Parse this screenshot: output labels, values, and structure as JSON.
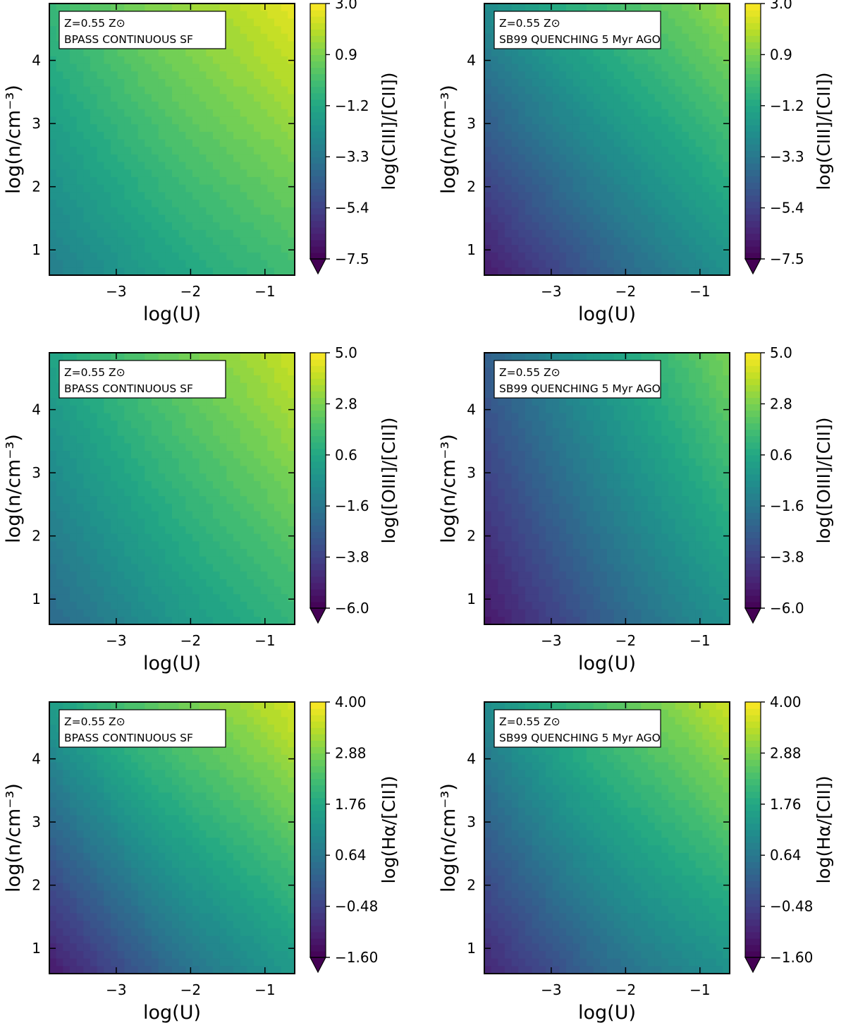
{
  "chart_data": [
    {
      "type": "heatmap",
      "annotation": [
        "Z=0.55 Z⊙",
        "BPASS CONTINUOUS SF"
      ],
      "xlabel": "log(U)",
      "ylabel": "log(n/cm⁻³)",
      "xlim": [
        -3.9,
        -0.6
      ],
      "ylim": [
        0.6,
        4.9
      ],
      "x_ticks": [
        -3,
        -2,
        -1
      ],
      "x_tick_labels": [
        "−3",
        "−2",
        "−1"
      ],
      "y_ticks": [
        1,
        2,
        3,
        4
      ],
      "y_tick_labels": [
        "1",
        "2",
        "3",
        "4"
      ],
      "colorbar": {
        "label": "log(CIII]/[CII])",
        "min": -7.5,
        "max": 3.0,
        "ticks": [
          3.0,
          0.9,
          -1.2,
          -3.3,
          -5.4,
          -7.5
        ],
        "tick_labels": [
          "3.0",
          "0.9",
          "−1.2",
          "−3.3",
          "−5.4",
          "−7.5"
        ]
      },
      "field": {
        "corners": {
          "bottom_left": -3.0,
          "bottom_right": -0.3,
          "top_left": -0.5,
          "top_right": 2.7
        }
      }
    },
    {
      "type": "heatmap",
      "annotation": [
        "Z=0.55 Z⊙",
        "SB99 QUENCHING 5 Myr AGO"
      ],
      "xlabel": "log(U)",
      "ylabel": "log(n/cm⁻³)",
      "xlim": [
        -3.9,
        -0.6
      ],
      "ylim": [
        0.6,
        4.9
      ],
      "x_ticks": [
        -3,
        -2,
        -1
      ],
      "x_tick_labels": [
        "−3",
        "−2",
        "−1"
      ],
      "y_ticks": [
        1,
        2,
        3,
        4
      ],
      "y_tick_labels": [
        "1",
        "2",
        "3",
        "4"
      ],
      "colorbar": {
        "label": "log(CIII]/[CII])",
        "min": -7.5,
        "max": 3.0,
        "ticks": [
          3.0,
          0.9,
          -1.2,
          -3.3,
          -5.4,
          -7.5
        ],
        "tick_labels": [
          "3.0",
          "0.9",
          "−1.2",
          "−3.3",
          "−5.4",
          "−7.5"
        ]
      },
      "field": {
        "corners": {
          "bottom_left": -6.8,
          "bottom_right": -2.2,
          "top_left": -2.4,
          "top_right": 1.5
        }
      }
    },
    {
      "type": "heatmap",
      "annotation": [
        "Z=0.55 Z⊙",
        "BPASS CONTINUOUS SF"
      ],
      "xlabel": "log(U)",
      "ylabel": "log(n/cm⁻³)",
      "xlim": [
        -3.9,
        -0.6
      ],
      "ylim": [
        0.6,
        4.9
      ],
      "x_ticks": [
        -3,
        -2,
        -1
      ],
      "x_tick_labels": [
        "−3",
        "−2",
        "−1"
      ],
      "y_ticks": [
        1,
        2,
        3,
        4
      ],
      "y_tick_labels": [
        "1",
        "2",
        "3",
        "4"
      ],
      "colorbar": {
        "label": "log([OIII]/[CII])",
        "min": -6.0,
        "max": 5.0,
        "ticks": [
          5.0,
          2.8,
          0.6,
          -1.6,
          -3.8,
          -6.0
        ],
        "tick_labels": [
          "5.0",
          "2.8",
          "0.6",
          "−1.6",
          "−3.8",
          "−6.0"
        ]
      },
      "field": {
        "corners": {
          "bottom_left": -2.2,
          "bottom_right": 1.2,
          "top_left": 0.4,
          "top_right": 4.2
        }
      }
    },
    {
      "type": "heatmap",
      "annotation": [
        "Z=0.55 Z⊙",
        "SB99 QUENCHING 5 Myr AGO"
      ],
      "xlabel": "log(U)",
      "ylabel": "log(n/cm⁻³)",
      "xlim": [
        -3.9,
        -0.6
      ],
      "ylim": [
        0.6,
        4.9
      ],
      "x_ticks": [
        -3,
        -2,
        -1
      ],
      "x_tick_labels": [
        "−3",
        "−2",
        "−1"
      ],
      "y_ticks": [
        1,
        2,
        3,
        4
      ],
      "y_tick_labels": [
        "1",
        "2",
        "3",
        "4"
      ],
      "colorbar": {
        "label": "log([OIII]/[CII])",
        "min": -6.0,
        "max": 5.0,
        "ticks": [
          5.0,
          2.8,
          0.6,
          -1.6,
          -3.8,
          -6.0
        ],
        "tick_labels": [
          "5.0",
          "2.8",
          "0.6",
          "−1.6",
          "−3.8",
          "−6.0"
        ]
      },
      "field": {
        "corners": {
          "bottom_left": -5.3,
          "bottom_right": -0.4,
          "top_left": -2.6,
          "top_right": 2.9
        }
      }
    },
    {
      "type": "heatmap",
      "annotation": [
        "Z=0.55 Z⊙",
        "BPASS CONTINUOUS SF"
      ],
      "xlabel": "log(U)",
      "ylabel": "log(n/cm⁻³)",
      "xlim": [
        -3.9,
        -0.6
      ],
      "ylim": [
        0.6,
        4.9
      ],
      "x_ticks": [
        -3,
        -2,
        -1
      ],
      "x_tick_labels": [
        "−3",
        "−2",
        "−1"
      ],
      "y_ticks": [
        1,
        2,
        3,
        4
      ],
      "y_tick_labels": [
        "1",
        "2",
        "3",
        "4"
      ],
      "colorbar": {
        "label": "log(Hα/[CII])",
        "min": -1.6,
        "max": 4.0,
        "ticks": [
          4.0,
          2.88,
          1.76,
          0.64,
          -0.48,
          -1.6
        ],
        "tick_labels": [
          "4.00",
          "2.88",
          "1.76",
          "0.64",
          "−0.48",
          "−1.60"
        ]
      },
      "field": {
        "corners": {
          "bottom_left": -1.2,
          "bottom_right": 1.4,
          "top_left": 1.5,
          "top_right": 3.7
        }
      }
    },
    {
      "type": "heatmap",
      "annotation": [
        "Z=0.55 Z⊙",
        "SB99 QUENCHING 5 Myr AGO"
      ],
      "xlabel": "log(U)",
      "ylabel": "log(n/cm⁻³)",
      "xlim": [
        -3.9,
        -0.6
      ],
      "ylim": [
        0.6,
        4.9
      ],
      "x_ticks": [
        -3,
        -2,
        -1
      ],
      "x_tick_labels": [
        "−3",
        "−2",
        "−1"
      ],
      "y_ticks": [
        1,
        2,
        3,
        4
      ],
      "y_tick_labels": [
        "1",
        "2",
        "3",
        "4"
      ],
      "colorbar": {
        "label": "log(Hα/[CII])",
        "min": -1.6,
        "max": 4.0,
        "ticks": [
          4.0,
          2.88,
          1.76,
          0.64,
          -0.48,
          -1.6
        ],
        "tick_labels": [
          "4.00",
          "2.88",
          "1.76",
          "0.64",
          "−0.48",
          "−1.60"
        ]
      },
      "field": {
        "corners": {
          "bottom_left": -1.0,
          "bottom_right": 1.2,
          "top_left": 1.1,
          "top_right": 3.6
        }
      }
    }
  ]
}
